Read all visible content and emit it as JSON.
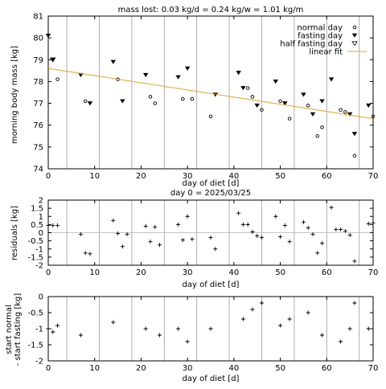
{
  "chart_data": [
    {
      "type": "scatter",
      "title": "mass lost: 0.03 kg/d = 0.24 kg/w = 1.01 kg/m",
      "xlabel": "day of diet [d]",
      "subtitle": "day 0 = 2025/03/25",
      "ylabel": "morning body mass [kg]",
      "xlim": [
        0,
        70
      ],
      "ylim": [
        74,
        81
      ],
      "xticks": [
        0,
        10,
        20,
        30,
        40,
        50,
        60,
        70
      ],
      "yticks": [
        74,
        75,
        76,
        77,
        78,
        79,
        80,
        81
      ],
      "week_lines": [
        4,
        11,
        18,
        25,
        32,
        39,
        46,
        53,
        60,
        67
      ],
      "legend": [
        "normal day",
        "fasting day",
        "half fasting day",
        "linear fit"
      ],
      "legend_position": "top-right",
      "series": [
        {
          "name": "normal day",
          "marker": "circle",
          "x": [
            2,
            8,
            15,
            22,
            23,
            29,
            31,
            35,
            43,
            44,
            46,
            50,
            52,
            56,
            58,
            59,
            63,
            64,
            66,
            70
          ],
          "y": [
            78.1,
            77.1,
            78.1,
            77.3,
            77.0,
            77.2,
            77.2,
            76.4,
            77.7,
            77.3,
            76.7,
            77.1,
            76.3,
            76.9,
            75.5,
            75.9,
            76.7,
            76.6,
            74.6,
            76.4
          ]
        },
        {
          "name": "fasting day",
          "marker": "triangle-down",
          "x": [
            0,
            1,
            7,
            9,
            14,
            16,
            21,
            28,
            30,
            36,
            41,
            42,
            45,
            49,
            51,
            55,
            57,
            59,
            61,
            65,
            66,
            69
          ],
          "y": [
            80.1,
            79.0,
            78.3,
            77.0,
            78.9,
            77.1,
            78.3,
            78.2,
            78.6,
            77.4,
            78.4,
            77.7,
            76.9,
            78.0,
            77.0,
            77.4,
            76.5,
            77.1,
            78.1,
            76.5,
            75.6,
            76.9
          ]
        },
        {
          "name": "half fasting day",
          "marker": "triangle-down-open",
          "x": [
            1
          ],
          "y": [
            79.0
          ]
        },
        {
          "name": "linear fit",
          "color": "#f0a020",
          "x": [
            0,
            70
          ],
          "y": [
            78.6,
            76.3
          ]
        }
      ]
    },
    {
      "type": "scatter",
      "xlabel": "day of diet [d]",
      "ylabel": "residuals [kg]",
      "xlim": [
        0,
        70
      ],
      "ylim": [
        -2,
        2
      ],
      "xticks": [
        0,
        10,
        20,
        30,
        40,
        50,
        60,
        70
      ],
      "yticks": [
        -2,
        -1.5,
        -1,
        -0.5,
        0,
        0.5,
        1,
        1.5,
        2
      ],
      "ytick_labels": [
        "-2",
        "-1.5",
        "-1",
        "-0.5",
        "0",
        "0.5",
        "1",
        "1.5",
        "2"
      ],
      "zero_line": true,
      "week_lines": [
        4,
        11,
        18,
        25,
        32,
        39,
        46,
        53,
        60,
        67
      ],
      "series": [
        {
          "marker": "plus",
          "x": [
            0,
            1,
            2,
            7,
            8,
            9,
            14,
            15,
            16,
            17,
            21,
            22,
            23,
            24,
            28,
            29,
            30,
            31,
            35,
            36,
            41,
            42,
            43,
            44,
            45,
            46,
            49,
            50,
            51,
            52,
            55,
            56,
            57,
            58,
            59,
            61,
            62,
            63,
            64,
            65,
            66,
            69,
            70
          ],
          "y": [
            0.45,
            0.45,
            0.45,
            -0.1,
            -1.25,
            -1.3,
            0.75,
            -0.05,
            -0.85,
            -0.1,
            0.4,
            -0.55,
            0.35,
            -0.75,
            0.5,
            -0.45,
            1.0,
            -0.4,
            -0.3,
            -1.0,
            1.2,
            0.5,
            0.5,
            0.05,
            -0.2,
            -0.3,
            1.0,
            -0.25,
            0.45,
            -0.55,
            0.65,
            0.3,
            -0.1,
            -1.25,
            -0.65,
            1.55,
            0.2,
            0.2,
            0.1,
            -0.15,
            -1.75,
            0.55,
            0.6
          ]
        }
      ]
    },
    {
      "type": "scatter",
      "xlabel": "day of diet [d]",
      "ylabel": "start normal\n- start fasting [kg]",
      "xlim": [
        0,
        70
      ],
      "ylim": [
        -2,
        0
      ],
      "xticks": [
        0,
        10,
        20,
        30,
        40,
        50,
        60,
        70
      ],
      "yticks": [
        -2,
        -1.5,
        -1,
        -0.5,
        0
      ],
      "ytick_labels": [
        "-2",
        "-1.5",
        "-1",
        "-0.5",
        "0"
      ],
      "week_lines": [
        4,
        11,
        18,
        25,
        32,
        39,
        46,
        53,
        60,
        67
      ],
      "series": [
        {
          "marker": "plus",
          "x": [
            0,
            1,
            2,
            7,
            14,
            21,
            24,
            28,
            30,
            35,
            42,
            44,
            46,
            50,
            52,
            56,
            59,
            63,
            65,
            66,
            69
          ],
          "y": [
            -1.0,
            -1.1,
            -0.9,
            -1.2,
            -0.8,
            -1.0,
            -1.2,
            -1.0,
            -1.4,
            -1.0,
            -0.7,
            -0.4,
            -0.2,
            -0.9,
            -0.7,
            -0.5,
            -1.2,
            -1.4,
            -1.0,
            -0.2,
            -1.0
          ]
        }
      ]
    }
  ]
}
